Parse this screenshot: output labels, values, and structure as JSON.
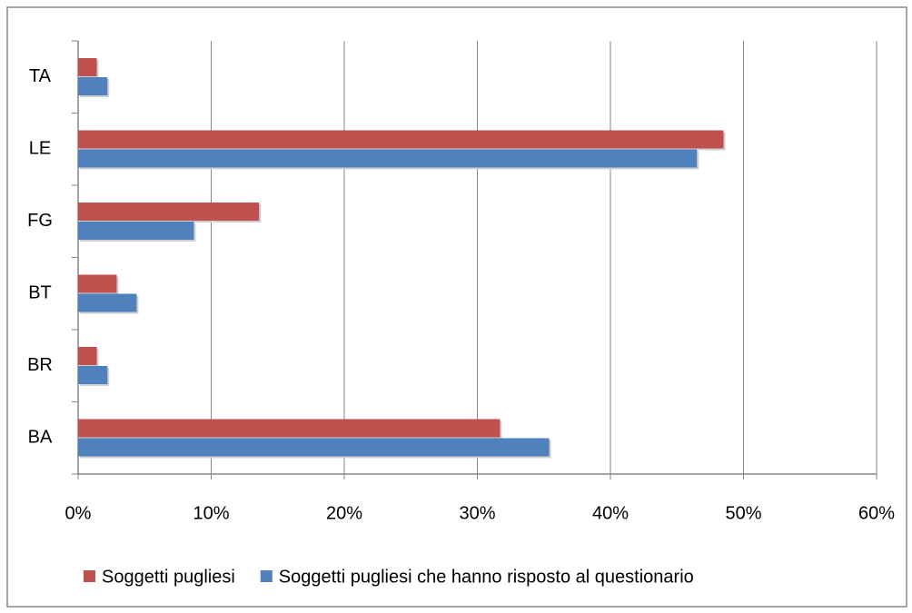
{
  "chart_data": {
    "type": "barh",
    "categories": [
      "BA",
      "BR",
      "BT",
      "FG",
      "LE",
      "TA"
    ],
    "series": [
      {
        "name": "Soggetti pugliesi",
        "color": "#c0504d",
        "values": [
          31.7,
          1.4,
          2.9,
          13.6,
          48.5,
          1.4
        ]
      },
      {
        "name": "Soggetti pugliesi che hanno risposto al questionario",
        "color": "#4f81bd",
        "values": [
          35.4,
          2.2,
          4.4,
          8.7,
          46.5,
          2.2
        ]
      }
    ],
    "xlim": [
      0,
      60
    ],
    "xticks": [
      {
        "value": 0,
        "label": "0%"
      },
      {
        "value": 10,
        "label": "10%"
      },
      {
        "value": 20,
        "label": "20%"
      },
      {
        "value": 30,
        "label": "30%"
      },
      {
        "value": 40,
        "label": "40%"
      },
      {
        "value": 50,
        "label": "50%"
      },
      {
        "value": 60,
        "label": "60%"
      }
    ],
    "grid": true,
    "legend": "bottom"
  }
}
